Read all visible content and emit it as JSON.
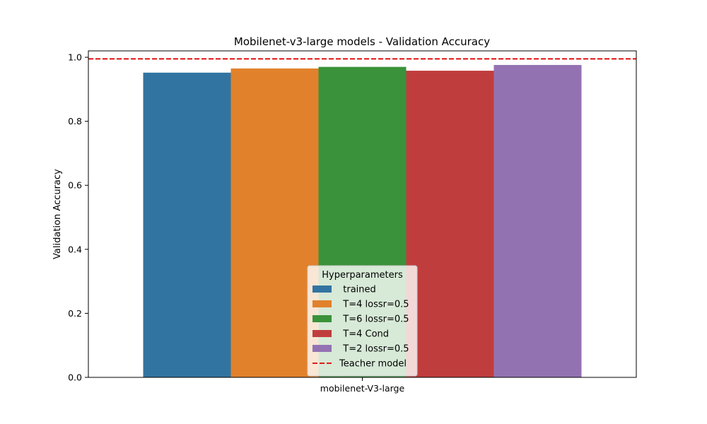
{
  "chart_data": {
    "type": "bar",
    "title": "Mobilenet-v3-large models - Validation Accuracy",
    "xlabel": "",
    "ylabel": "Validation Accuracy",
    "categories": [
      "mobilenet-V3-large"
    ],
    "ylim": [
      0,
      1.02
    ],
    "yticks": [
      "0.0",
      "0.2",
      "0.4",
      "0.6",
      "0.8",
      "1.0"
    ],
    "grid": false,
    "legend_title": "Hyperparameters",
    "legend_position": "lower-center",
    "series": [
      {
        "name": "  trained",
        "values": [
          0.952
        ],
        "color": "#3274a1"
      },
      {
        "name": "  T=4 lossr=0.5",
        "values": [
          0.965
        ],
        "color": "#e1812c"
      },
      {
        "name": "  T=6 lossr=0.5",
        "values": [
          0.97
        ],
        "color": "#3a923a"
      },
      {
        "name": "  T=4 Cond",
        "values": [
          0.958
        ],
        "color": "#c03d3e"
      },
      {
        "name": "  T=2 lossr=0.5",
        "values": [
          0.976
        ],
        "color": "#9372b2"
      }
    ],
    "reference_line": {
      "name": "Teacher model",
      "value": 0.995,
      "color": "#e00000",
      "style": "dashed"
    }
  }
}
